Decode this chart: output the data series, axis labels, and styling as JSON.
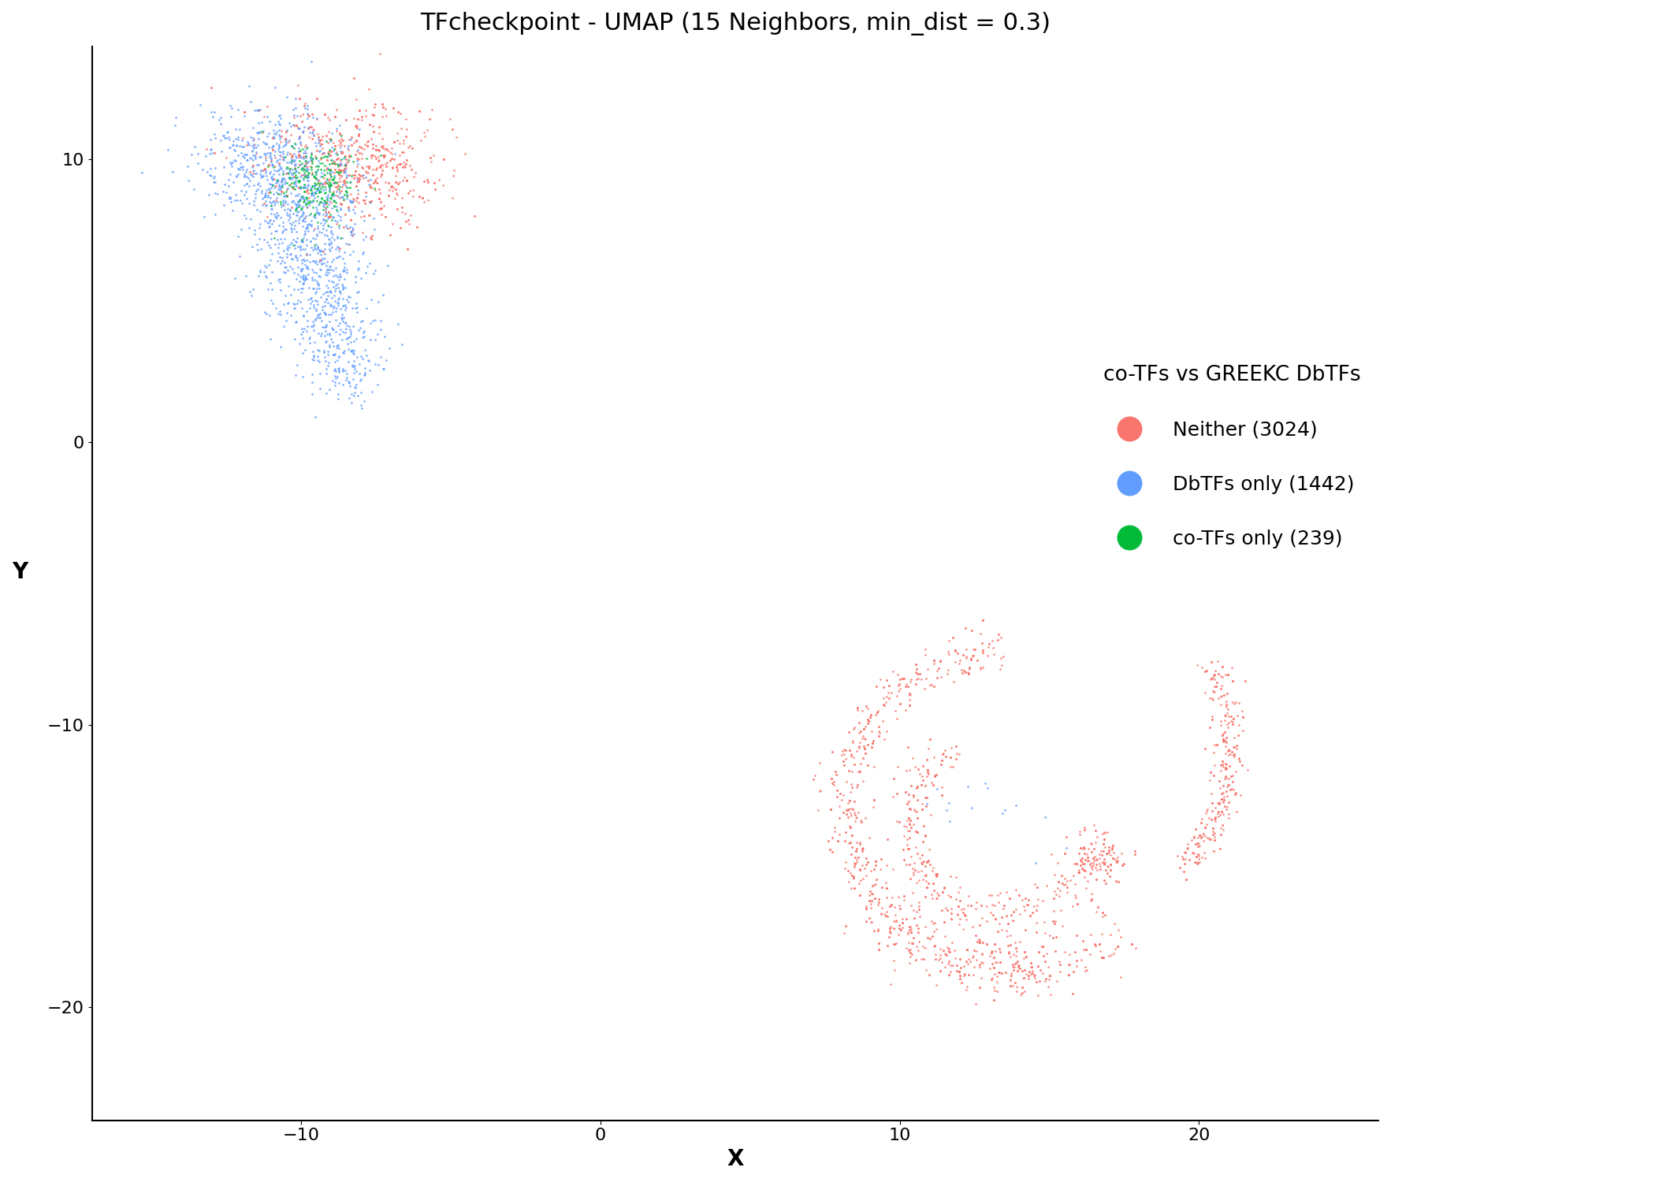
{
  "title": "TFcheckpoint - UMAP (15 Neighbors, min_dist = 0.3)",
  "xlabel": "X",
  "ylabel": "Y",
  "xlim": [
    -17,
    26
  ],
  "ylim": [
    -24,
    14
  ],
  "legend_title": "co-TFs vs GREEKC DbTFs",
  "categories": [
    {
      "name": "Neither (3024)",
      "color": "#F8766D",
      "n": 3024
    },
    {
      "name": "DbTFs only (1442)",
      "color": "#619CFF",
      "n": 1442
    },
    {
      "name": "co-TFs only (239)",
      "color": "#00BA38",
      "n": 239
    }
  ],
  "seed": 42,
  "background_color": "#FFFFFF",
  "title_fontsize": 22,
  "axis_label_fontsize": 20,
  "tick_fontsize": 16,
  "legend_fontsize": 18,
  "legend_title_fontsize": 19,
  "point_size": 3.5,
  "point_alpha": 0.85
}
